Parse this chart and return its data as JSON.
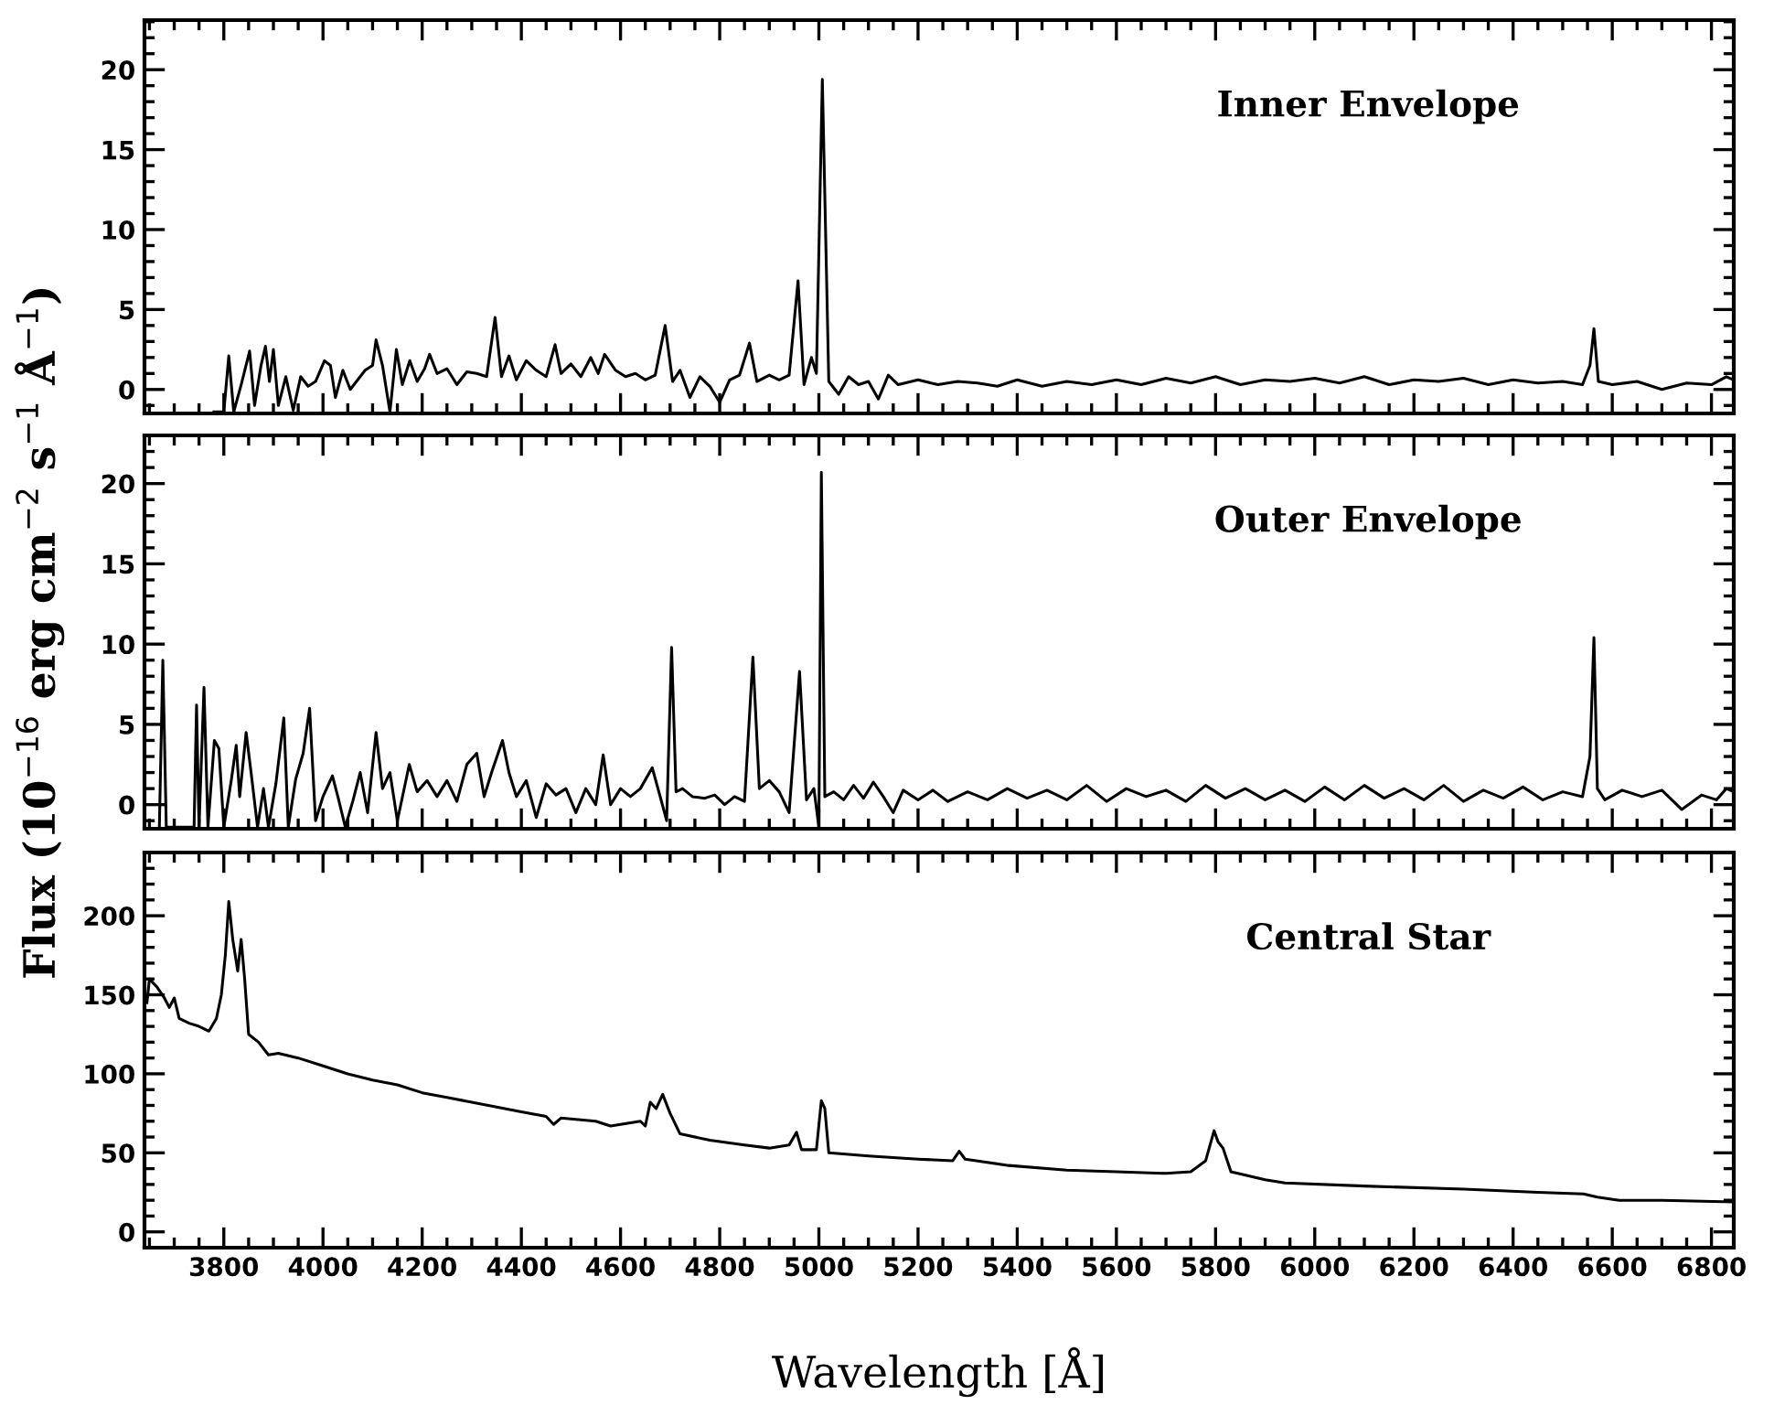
{
  "chart_data": [
    {
      "type": "line",
      "annotations": [
        "Inner Envelope"
      ],
      "xlim": [
        3640,
        6845
      ],
      "xticks": [
        3800,
        4000,
        4200,
        4400,
        4600,
        4800,
        5000,
        5200,
        5400,
        5600,
        5800,
        6000,
        6200,
        6400,
        6600,
        6800
      ],
      "ylim": [
        -1.5,
        23.1
      ],
      "yticks": [
        0,
        5,
        10,
        15,
        20
      ],
      "tick_labels": "y",
      "series": [
        {
          "color": "#000000",
          "x": [
            3780,
            3800,
            3810,
            3820,
            3835,
            3852,
            3862,
            3875,
            3884,
            3892,
            3900,
            3910,
            3925,
            3940,
            3955,
            3970,
            3985,
            4003,
            4015,
            4025,
            4040,
            4055,
            4070,
            4085,
            4100,
            4107,
            4120,
            4135,
            4148,
            4160,
            4175,
            4190,
            4205,
            4215,
            4230,
            4250,
            4270,
            4290,
            4310,
            4330,
            4347,
            4360,
            4375,
            4390,
            4410,
            4430,
            4450,
            4468,
            4480,
            4500,
            4520,
            4540,
            4555,
            4568,
            4590,
            4610,
            4630,
            4650,
            4670,
            4690,
            4705,
            4720,
            4740,
            4760,
            4780,
            4800,
            4820,
            4840,
            4860,
            4875,
            4900,
            4920,
            4940,
            4958,
            4970,
            4985,
            4995,
            5007,
            5020,
            5040,
            5060,
            5080,
            5100,
            5120,
            5140,
            5160,
            5200,
            5240,
            5280,
            5320,
            5360,
            5400,
            5450,
            5500,
            5550,
            5600,
            5650,
            5700,
            5750,
            5800,
            5850,
            5900,
            5950,
            6000,
            6050,
            6100,
            6150,
            6200,
            6250,
            6300,
            6350,
            6400,
            6450,
            6500,
            6540,
            6555,
            6563,
            6572,
            6600,
            6650,
            6700,
            6750,
            6800,
            6830,
            6845
          ],
          "values": [
            -1.4,
            -1.4,
            2.1,
            -1.4,
            0.3,
            2.4,
            -1.0,
            1.5,
            2.7,
            0.5,
            2.5,
            -1.0,
            0.8,
            -1.3,
            0.8,
            0.2,
            0.5,
            1.8,
            1.5,
            -0.5,
            1.2,
            0.0,
            0.6,
            1.2,
            1.5,
            3.1,
            1.5,
            -1.4,
            2.5,
            0.3,
            1.8,
            0.5,
            1.3,
            2.2,
            1.0,
            1.3,
            0.3,
            1.1,
            1.0,
            0.8,
            4.5,
            0.8,
            2.1,
            0.6,
            1.8,
            1.2,
            0.8,
            2.8,
            1.0,
            1.6,
            0.8,
            2.0,
            1.0,
            2.2,
            1.2,
            0.8,
            1.0,
            0.6,
            0.9,
            4.0,
            0.5,
            1.2,
            -0.5,
            0.8,
            0.2,
            -0.8,
            0.6,
            0.9,
            2.9,
            0.5,
            0.9,
            0.6,
            0.9,
            6.8,
            0.3,
            2.0,
            1.0,
            19.4,
            0.5,
            -0.3,
            0.8,
            0.3,
            0.5,
            -0.6,
            0.9,
            0.3,
            0.6,
            0.3,
            0.5,
            0.4,
            0.2,
            0.6,
            0.2,
            0.5,
            0.3,
            0.6,
            0.3,
            0.7,
            0.4,
            0.8,
            0.3,
            0.6,
            0.5,
            0.7,
            0.4,
            0.8,
            0.3,
            0.6,
            0.5,
            0.7,
            0.3,
            0.6,
            0.4,
            0.5,
            0.3,
            1.5,
            3.8,
            0.5,
            0.3,
            0.5,
            0.0,
            0.4,
            0.3,
            0.8,
            0.6
          ]
        }
      ]
    },
    {
      "type": "line",
      "annotations": [
        "Outer Envelope"
      ],
      "ylabel": "Flux (10$^{−16}$ erg cm$^{−2}$ s$^{−1}$ Å$^{−1}$)",
      "xlim": [
        3640,
        6845
      ],
      "xticks": [
        3800,
        4000,
        4200,
        4400,
        4600,
        4800,
        5000,
        5200,
        5400,
        5600,
        5800,
        6000,
        6200,
        6400,
        6600,
        6800
      ],
      "ylim": [
        -1.5,
        23
      ],
      "yticks": [
        0,
        5,
        10,
        15,
        20
      ],
      "tick_labels": "y",
      "series": [
        {
          "color": "#000000",
          "x": [
            3670,
            3677,
            3684,
            3700,
            3740,
            3745,
            3750,
            3760,
            3768,
            3781,
            3790,
            3800,
            3815,
            3825,
            3832,
            3845,
            3855,
            3868,
            3880,
            3890,
            3905,
            3921,
            3930,
            3945,
            3960,
            3973,
            3985,
            4000,
            4019,
            4030,
            4045,
            4060,
            4075,
            4090,
            4107,
            4120,
            4135,
            4150,
            4174,
            4190,
            4210,
            4230,
            4250,
            4270,
            4290,
            4310,
            4325,
            4340,
            4362,
            4375,
            4390,
            4410,
            4430,
            4450,
            4470,
            4490,
            4510,
            4530,
            4550,
            4565,
            4580,
            4600,
            4620,
            4640,
            4664,
            4680,
            4693,
            4703,
            4712,
            4725,
            4745,
            4770,
            4790,
            4810,
            4830,
            4850,
            4867,
            4880,
            4900,
            4920,
            4940,
            4961,
            4975,
            4990,
            5000,
            5005,
            5012,
            5030,
            5050,
            5070,
            5090,
            5110,
            5130,
            5150,
            5170,
            5200,
            5230,
            5260,
            5300,
            5340,
            5380,
            5420,
            5460,
            5500,
            5540,
            5580,
            5620,
            5660,
            5700,
            5740,
            5780,
            5820,
            5860,
            5900,
            5940,
            5980,
            6020,
            6060,
            6100,
            6140,
            6180,
            6220,
            6260,
            6300,
            6340,
            6380,
            6420,
            6460,
            6500,
            6540,
            6555,
            6563,
            6570,
            6585,
            6620,
            6660,
            6700,
            6740,
            6780,
            6810,
            6830,
            6845
          ],
          "values": [
            -1.4,
            9.0,
            -1.4,
            -1.4,
            -1.4,
            6.2,
            -1.4,
            7.3,
            -1.4,
            4.0,
            3.5,
            -1.4,
            1.5,
            3.7,
            0.5,
            4.5,
            2.0,
            -1.4,
            1.0,
            -1.4,
            1.3,
            5.4,
            -1.4,
            1.6,
            3.2,
            6.0,
            -1.0,
            0.5,
            1.8,
            0.5,
            -1.4,
            0.2,
            2.0,
            -0.5,
            4.5,
            1.0,
            2.0,
            -1.0,
            2.5,
            0.8,
            1.5,
            0.5,
            1.5,
            0.2,
            2.5,
            3.2,
            0.5,
            2.0,
            4.0,
            2.0,
            0.5,
            1.5,
            -0.8,
            1.3,
            0.6,
            1.0,
            -0.5,
            1.0,
            0.0,
            3.1,
            0.0,
            1.0,
            0.5,
            1.0,
            2.3,
            0.5,
            -1.0,
            9.8,
            0.8,
            1.0,
            0.5,
            0.4,
            0.6,
            0.0,
            0.5,
            0.2,
            9.2,
            1.0,
            1.5,
            0.8,
            -0.5,
            8.3,
            0.3,
            1.0,
            -1.4,
            20.7,
            0.5,
            0.8,
            0.3,
            1.2,
            0.4,
            1.4,
            0.5,
            -0.5,
            0.9,
            0.3,
            0.9,
            0.2,
            0.8,
            0.3,
            1.0,
            0.4,
            0.9,
            0.3,
            1.2,
            0.2,
            1.0,
            0.5,
            0.9,
            0.2,
            1.2,
            0.4,
            1.0,
            0.3,
            0.9,
            0.2,
            1.1,
            0.3,
            1.2,
            0.4,
            1.0,
            0.3,
            1.2,
            0.2,
            0.9,
            0.4,
            1.1,
            0.3,
            0.8,
            0.5,
            3.0,
            10.4,
            1.0,
            0.3,
            0.9,
            0.5,
            0.9,
            -0.3,
            0.6,
            0.3,
            1.0,
            0.8
          ]
        }
      ]
    },
    {
      "type": "line",
      "annotations": [
        "Central Star"
      ],
      "xlabel": "Wavelength [Å]",
      "xlim": [
        3640,
        6845
      ],
      "xticks": [
        3800,
        4000,
        4200,
        4400,
        4600,
        4800,
        5000,
        5200,
        5400,
        5600,
        5800,
        6000,
        6200,
        6400,
        6600,
        6800
      ],
      "ylim": [
        -10,
        240
      ],
      "yticks": [
        0,
        50,
        100,
        150,
        200
      ],
      "series": [
        {
          "color": "#000000",
          "x": [
            3645,
            3650,
            3665,
            3680,
            3690,
            3700,
            3710,
            3730,
            3750,
            3770,
            3785,
            3795,
            3803,
            3810,
            3818,
            3828,
            3835,
            3842,
            3850,
            3870,
            3890,
            3910,
            3950,
            4000,
            4050,
            4100,
            4150,
            4200,
            4250,
            4300,
            4350,
            4400,
            4450,
            4465,
            4480,
            4550,
            4580,
            4620,
            4640,
            4650,
            4660,
            4672,
            4685,
            4700,
            4720,
            4780,
            4850,
            4900,
            4940,
            4955,
            4965,
            4995,
            5005,
            5012,
            5020,
            5100,
            5200,
            5270,
            5283,
            5295,
            5383,
            5500,
            5600,
            5700,
            5750,
            5780,
            5797,
            5805,
            5815,
            5831,
            5900,
            5940,
            6100,
            6301,
            6450,
            6542,
            6570,
            6614,
            6700,
            6843
          ],
          "values": [
            145,
            160,
            155,
            148,
            142,
            148,
            135,
            132,
            130,
            127,
            135,
            150,
            175,
            209,
            185,
            165,
            185,
            160,
            125,
            120,
            112,
            113,
            110,
            105,
            100,
            96,
            93,
            88,
            85,
            82,
            79,
            76,
            73,
            68,
            72,
            70,
            67,
            69,
            70,
            67,
            82,
            78,
            87,
            75,
            62,
            58,
            55,
            53,
            55,
            63,
            52,
            52,
            83,
            78,
            50,
            48,
            46,
            45,
            51,
            46,
            42,
            39,
            38,
            37,
            38,
            45,
            64,
            57,
            53,
            38,
            33,
            31,
            29,
            27,
            25,
            24,
            22,
            20,
            20,
            19
          ]
        }
      ]
    }
  ]
}
